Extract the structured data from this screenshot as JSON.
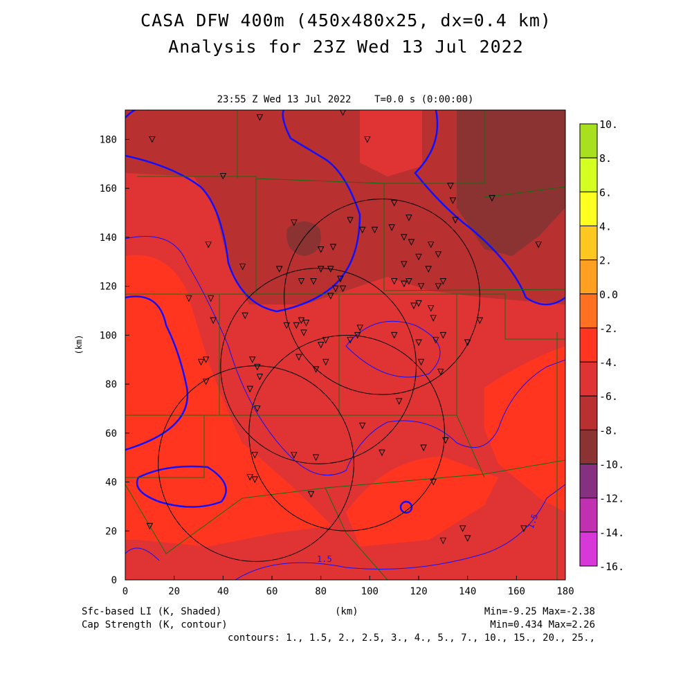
{
  "header": {
    "title1": "CASA DFW 400m (450x480x25, dx=0.4 km)",
    "title2": "Analysis for 23Z Wed 13 Jul 2022"
  },
  "plot_title": "23:55 Z Wed 13 Jul 2022    T=0.0 s (0:00:00)",
  "footer": {
    "left1": "Sfc-based LI (K, Shaded)",
    "left2": "Cap Strength (K, contour)",
    "xunit": "(km)",
    "stats1": "Min=-9.25 Max=-2.38",
    "stats2": "Min=0.434 Max=2.26",
    "contours": "contours: 1., 1.5, 2., 2.5, 3., 4., 5., 7., 10., 15., 20., 25.,"
  },
  "chart_data": {
    "type": "heatmap",
    "xlabel": "(km)",
    "ylabel": "(km)",
    "xlim": [
      0,
      180
    ],
    "ylim": [
      0,
      192
    ],
    "xticks": [
      "0",
      "20",
      "40",
      "60",
      "80",
      "100",
      "120",
      "140",
      "160",
      "180"
    ],
    "yticks": [
      "0",
      "20",
      "40",
      "60",
      "80",
      "100",
      "120",
      "140",
      "160",
      "180"
    ],
    "colorbar": {
      "labels": [
        "10.",
        "8.",
        "6.",
        "4.",
        "2.",
        "0.0",
        "-2.",
        "-4.",
        "-6.",
        "-8.",
        "-10.",
        "-12.",
        "-14.",
        "-16."
      ],
      "colors": [
        "#a8e020",
        "#d4ff20",
        "#ffff20",
        "#ffc820",
        "#ffa020",
        "#ff7020",
        "#ff3520",
        "#e03434",
        "#b83030",
        "#8b3232",
        "#883080",
        "#c030b0",
        "#d838d8"
      ]
    },
    "contour_labels": [
      "1.5",
      "1.5"
    ],
    "radar_rings_km": [
      {
        "cx": 105,
        "cy": 115.7,
        "r": 40
      },
      {
        "cx": 79,
        "cy": 87.4,
        "r": 40
      },
      {
        "cx": 90.6,
        "cy": 60,
        "r": 40
      },
      {
        "cx": 53.5,
        "cy": 47.5,
        "r": 40
      }
    ],
    "stations_km": [
      [
        11,
        180
      ],
      [
        55,
        189
      ],
      [
        89,
        191
      ],
      [
        99,
        180
      ],
      [
        40,
        165
      ],
      [
        34,
        137
      ],
      [
        48,
        128
      ],
      [
        69,
        146
      ],
      [
        63,
        127
      ],
      [
        72,
        122
      ],
      [
        77,
        122
      ],
      [
        80,
        127
      ],
      [
        80,
        135
      ],
      [
        84,
        127
      ],
      [
        85,
        136
      ],
      [
        86,
        119
      ],
      [
        84,
        116
      ],
      [
        88,
        123
      ],
      [
        89,
        119
      ],
      [
        92,
        147
      ],
      [
        97,
        143
      ],
      [
        102,
        143
      ],
      [
        110,
        154
      ],
      [
        109,
        144
      ],
      [
        114,
        140
      ],
      [
        114,
        129
      ],
      [
        117,
        138
      ],
      [
        116,
        148
      ],
      [
        120,
        132
      ],
      [
        124,
        127
      ],
      [
        125,
        137
      ],
      [
        128,
        133
      ],
      [
        130,
        122
      ],
      [
        128,
        120
      ],
      [
        121,
        120
      ],
      [
        116,
        122
      ],
      [
        114,
        121
      ],
      [
        110,
        122
      ],
      [
        118,
        112
      ],
      [
        120,
        113
      ],
      [
        125,
        111
      ],
      [
        126,
        107
      ],
      [
        133,
        161
      ],
      [
        134,
        155
      ],
      [
        135,
        147
      ],
      [
        150,
        156
      ],
      [
        169,
        137
      ],
      [
        145,
        106
      ],
      [
        140,
        97
      ],
      [
        130,
        100
      ],
      [
        127,
        98
      ],
      [
        120,
        97
      ],
      [
        110,
        100
      ],
      [
        96,
        103
      ],
      [
        95,
        100
      ],
      [
        92,
        98
      ],
      [
        82,
        98
      ],
      [
        80,
        96
      ],
      [
        74,
        105
      ],
      [
        72,
        106
      ],
      [
        70,
        104
      ],
      [
        66,
        104
      ],
      [
        73,
        101
      ],
      [
        71,
        91
      ],
      [
        78,
        86
      ],
      [
        82,
        89
      ],
      [
        49,
        108
      ],
      [
        35,
        115
      ],
      [
        36,
        106
      ],
      [
        31,
        89
      ],
      [
        33,
        90
      ],
      [
        33,
        81
      ],
      [
        52,
        90
      ],
      [
        54,
        87
      ],
      [
        55,
        83
      ],
      [
        51,
        78
      ],
      [
        53,
        51
      ],
      [
        54,
        70
      ],
      [
        53,
        41
      ],
      [
        51,
        42
      ],
      [
        76,
        35
      ],
      [
        78,
        50
      ],
      [
        69,
        51
      ],
      [
        97,
        63
      ],
      [
        105,
        52
      ],
      [
        112,
        73
      ],
      [
        122,
        54
      ],
      [
        121,
        89
      ],
      [
        129,
        85
      ],
      [
        131,
        57
      ],
      [
        126,
        40
      ],
      [
        130,
        16
      ],
      [
        138,
        21
      ],
      [
        140,
        17
      ],
      [
        163,
        21
      ],
      [
        10,
        22
      ],
      [
        26,
        115
      ]
    ]
  }
}
